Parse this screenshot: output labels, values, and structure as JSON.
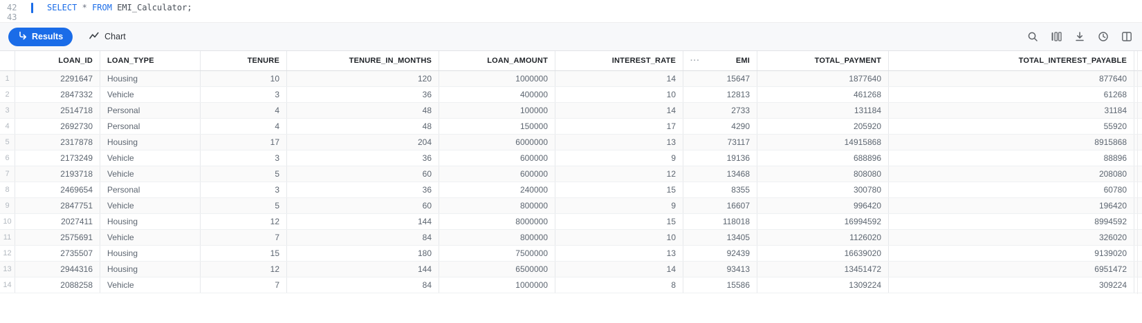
{
  "editor": {
    "line_numbers": [
      "42",
      "43"
    ],
    "sql": {
      "kw1": "SELECT",
      "star": "*",
      "kw2": "FROM",
      "rest": "EMI_Calculator;"
    }
  },
  "toolbar": {
    "results_label": "Results",
    "chart_label": "Chart"
  },
  "colors": {
    "accent": "#1a6ce8",
    "icon_gray": "#5f6368"
  },
  "table": {
    "column_menu_dots": "···",
    "columns": [
      {
        "label": "LOAN_ID",
        "align": "right"
      },
      {
        "label": "LOAN_TYPE",
        "align": "left"
      },
      {
        "label": "TENURE",
        "align": "right"
      },
      {
        "label": "TENURE_IN_MONTHS",
        "align": "right"
      },
      {
        "label": "LOAN_AMOUNT",
        "align": "right"
      },
      {
        "label": "INTEREST_RATE",
        "align": "right"
      },
      {
        "label": "EMI",
        "align": "right",
        "has_menu_dots": true
      },
      {
        "label": "TOTAL_PAYMENT",
        "align": "right"
      },
      {
        "label": "TOTAL_INTEREST_PAYABLE",
        "align": "right"
      }
    ],
    "row_numbers": [
      "1",
      "2",
      "3",
      "4",
      "5",
      "6",
      "7",
      "8",
      "9",
      "10",
      "11",
      "12",
      "13",
      "14"
    ],
    "rows": [
      [
        "2291647",
        "Housing",
        "10",
        "120",
        "1000000",
        "14",
        "15647",
        "1877640",
        "877640"
      ],
      [
        "2847332",
        "Vehicle",
        "3",
        "36",
        "400000",
        "10",
        "12813",
        "461268",
        "61268"
      ],
      [
        "2514718",
        "Personal",
        "4",
        "48",
        "100000",
        "14",
        "2733",
        "131184",
        "31184"
      ],
      [
        "2692730",
        "Personal",
        "4",
        "48",
        "150000",
        "17",
        "4290",
        "205920",
        "55920"
      ],
      [
        "2317878",
        "Housing",
        "17",
        "204",
        "6000000",
        "13",
        "73117",
        "14915868",
        "8915868"
      ],
      [
        "2173249",
        "Vehicle",
        "3",
        "36",
        "600000",
        "9",
        "19136",
        "688896",
        "88896"
      ],
      [
        "2193718",
        "Vehicle",
        "5",
        "60",
        "600000",
        "12",
        "13468",
        "808080",
        "208080"
      ],
      [
        "2469654",
        "Personal",
        "3",
        "36",
        "240000",
        "15",
        "8355",
        "300780",
        "60780"
      ],
      [
        "2847751",
        "Vehicle",
        "5",
        "60",
        "800000",
        "9",
        "16607",
        "996420",
        "196420"
      ],
      [
        "2027411",
        "Housing",
        "12",
        "144",
        "8000000",
        "15",
        "118018",
        "16994592",
        "8994592"
      ],
      [
        "2575691",
        "Vehicle",
        "7",
        "84",
        "800000",
        "10",
        "13405",
        "1126020",
        "326020"
      ],
      [
        "2735507",
        "Housing",
        "15",
        "180",
        "7500000",
        "13",
        "92439",
        "16639020",
        "9139020"
      ],
      [
        "2944316",
        "Housing",
        "12",
        "144",
        "6500000",
        "14",
        "93413",
        "13451472",
        "6951472"
      ],
      [
        "2088258",
        "Vehicle",
        "7",
        "84",
        "1000000",
        "8",
        "15586",
        "1309224",
        "309224"
      ]
    ]
  }
}
